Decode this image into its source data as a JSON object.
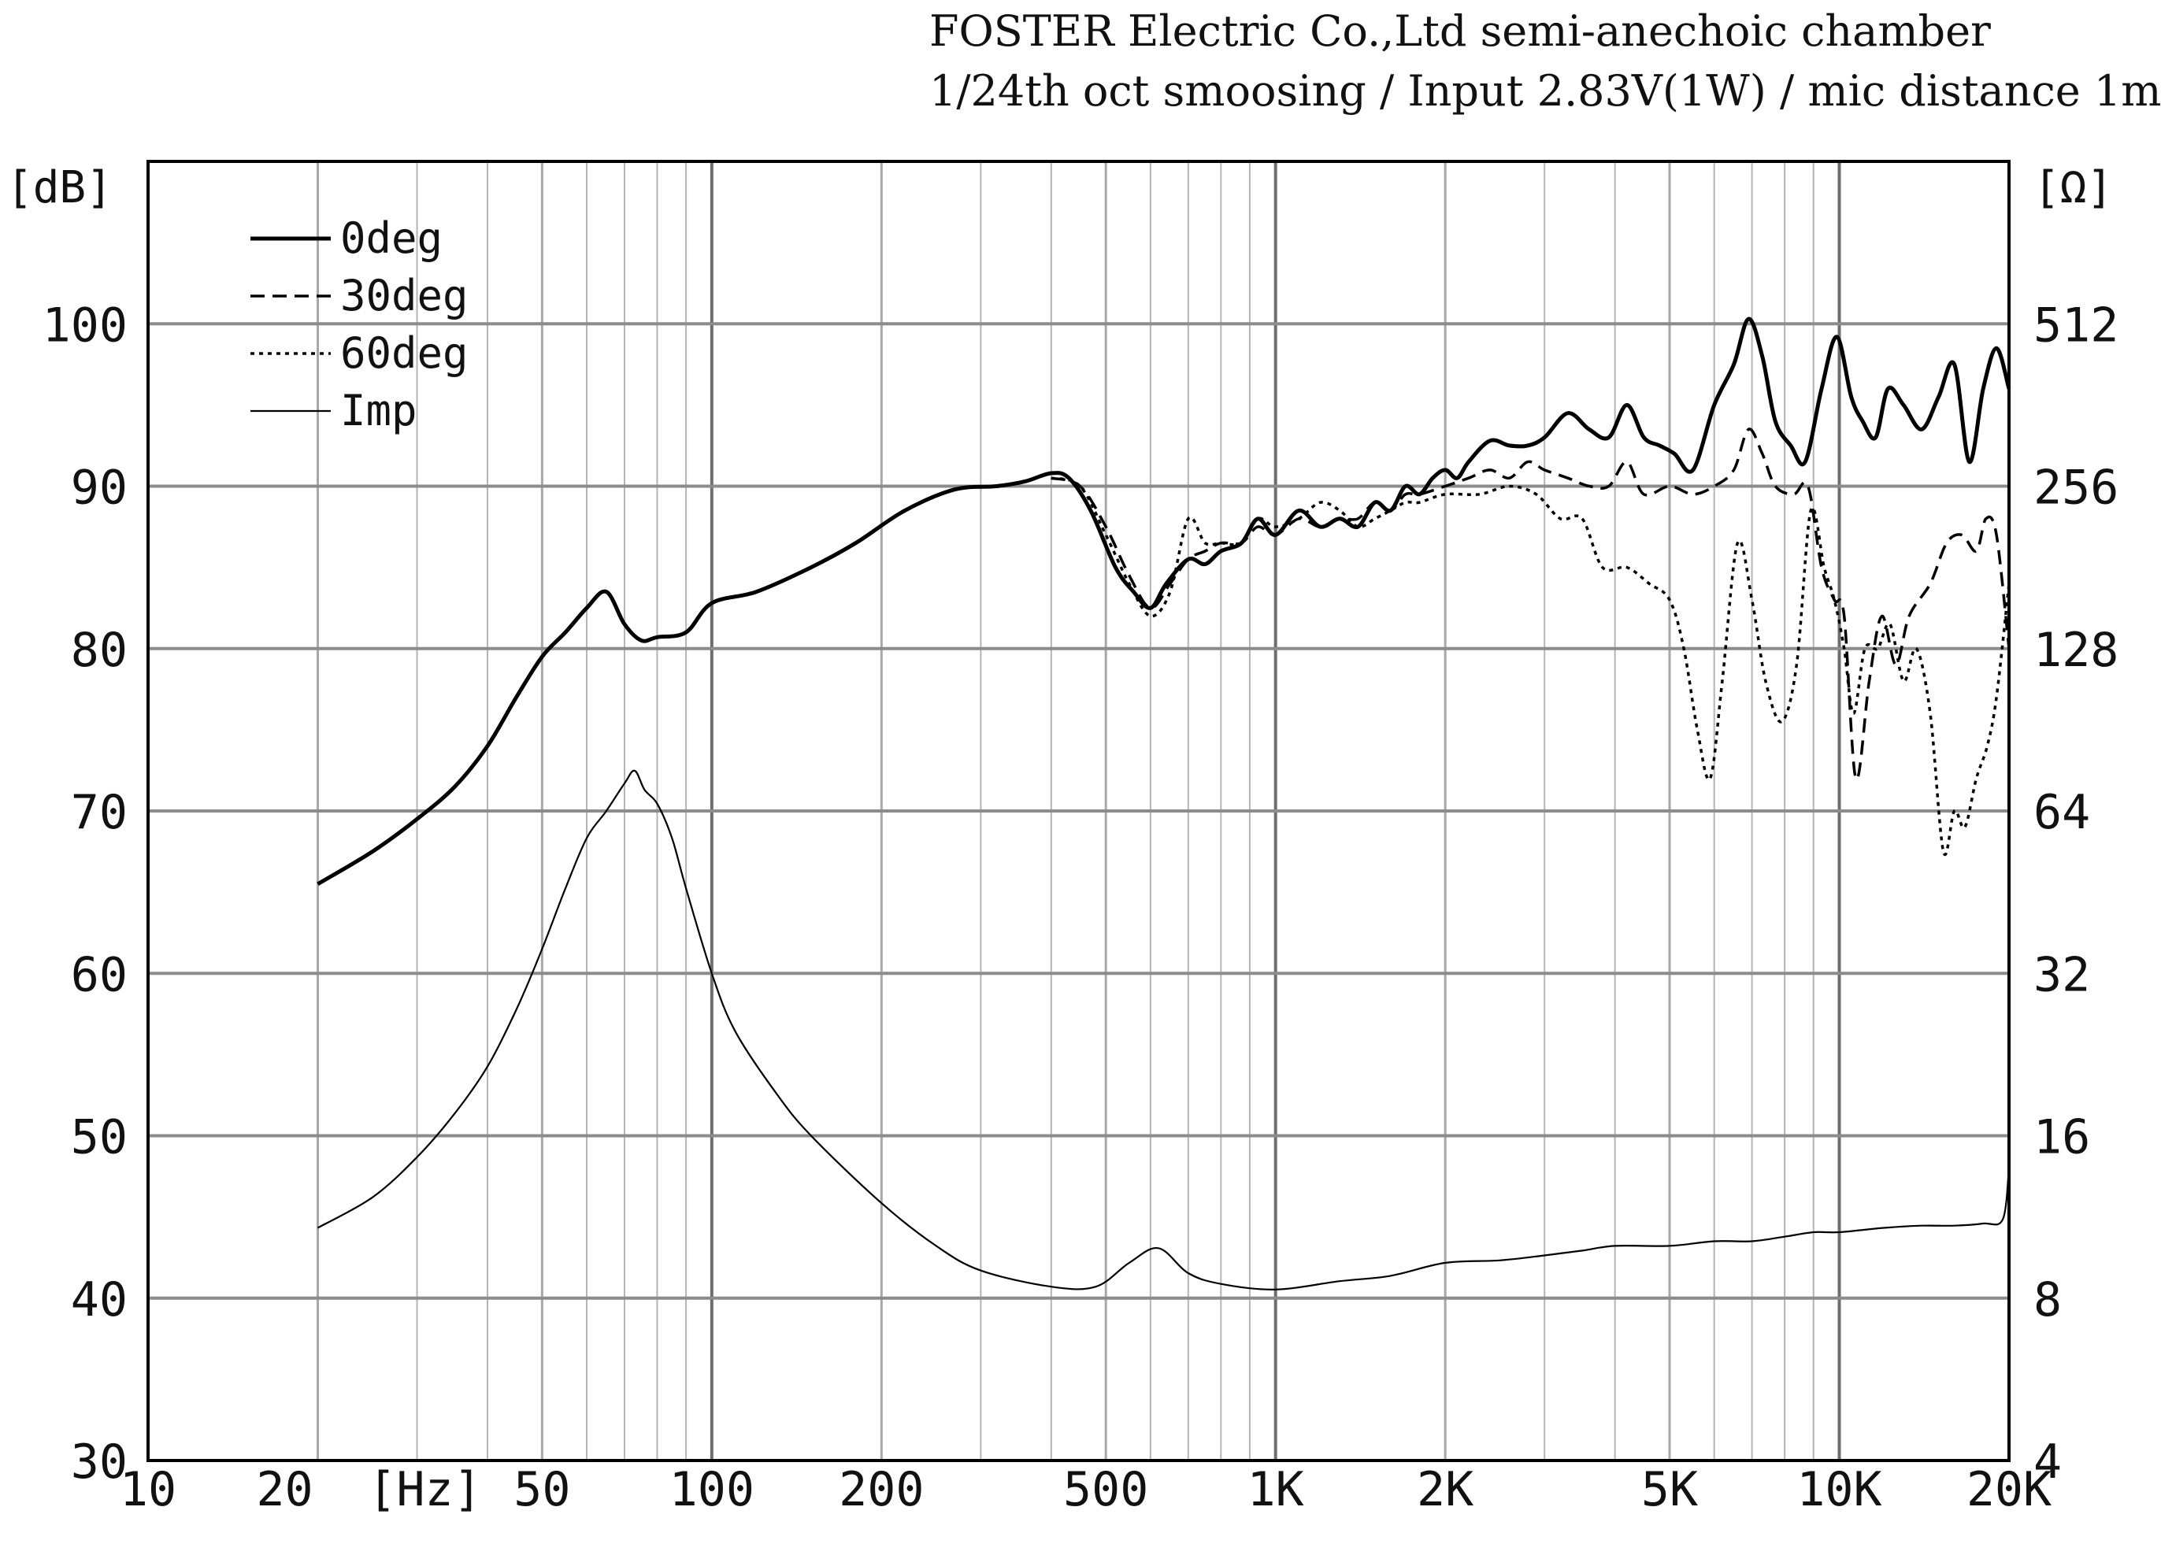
{
  "header": {
    "line1": "FOSTER Electric Co.,Ltd  semi-anechoic chamber",
    "line2": "1/24th oct smoosing / Input 2.83V(1W) / mic distance 1m"
  },
  "chart_data": {
    "type": "line",
    "x_scale": "log",
    "x_ticks": [
      {
        "v": 10,
        "label": "10"
      },
      {
        "v": 20,
        "label": "20"
      },
      {
        "v": 30,
        "label": "[Hz]"
      },
      {
        "v": 50,
        "label": "50"
      },
      {
        "v": 100,
        "label": "100"
      },
      {
        "v": 200,
        "label": "200"
      },
      {
        "v": 500,
        "label": "500"
      },
      {
        "v": 1000,
        "label": "1K"
      },
      {
        "v": 2000,
        "label": "2K"
      },
      {
        "v": 5000,
        "label": "5K"
      },
      {
        "v": 10000,
        "label": "10K"
      },
      {
        "v": 20000,
        "label": "20K"
      }
    ],
    "xlim": [
      10,
      20000
    ],
    "ylim": [
      30,
      110
    ],
    "y_left_unit": "[dB]",
    "y_left_ticks": [
      30,
      40,
      50,
      60,
      70,
      80,
      90,
      100
    ],
    "y_right_unit": "[Ω]",
    "y_right_ticks": [
      {
        "db": 30,
        "label": "4"
      },
      {
        "db": 40,
        "label": "8"
      },
      {
        "db": 50,
        "label": "16"
      },
      {
        "db": 60,
        "label": "32"
      },
      {
        "db": 70,
        "label": "64"
      },
      {
        "db": 80,
        "label": "128"
      },
      {
        "db": 90,
        "label": "256"
      },
      {
        "db": 100,
        "label": "512"
      }
    ],
    "grid": true,
    "legend_position": "top-left",
    "series": [
      {
        "name": "0deg",
        "style": "solid-thick",
        "points": [
          [
            20,
            65.5
          ],
          [
            25,
            67.5
          ],
          [
            30,
            69.5
          ],
          [
            35,
            71.5
          ],
          [
            40,
            74
          ],
          [
            45,
            77
          ],
          [
            50,
            79.5
          ],
          [
            55,
            81
          ],
          [
            60,
            82.5
          ],
          [
            65,
            83.5
          ],
          [
            70,
            81.5
          ],
          [
            75,
            80.5
          ],
          [
            80,
            80.7
          ],
          [
            90,
            81
          ],
          [
            100,
            82.8
          ],
          [
            120,
            83.5
          ],
          [
            150,
            85
          ],
          [
            180,
            86.5
          ],
          [
            220,
            88.5
          ],
          [
            270,
            89.8
          ],
          [
            320,
            90
          ],
          [
            360,
            90.3
          ],
          [
            400,
            90.8
          ],
          [
            430,
            90.5
          ],
          [
            470,
            88.5
          ],
          [
            520,
            85
          ],
          [
            560,
            83.5
          ],
          [
            600,
            82.5
          ],
          [
            640,
            84
          ],
          [
            700,
            85.5
          ],
          [
            750,
            85.2
          ],
          [
            800,
            86
          ],
          [
            870,
            86.5
          ],
          [
            930,
            88
          ],
          [
            1000,
            87
          ],
          [
            1100,
            88.5
          ],
          [
            1200,
            87.5
          ],
          [
            1300,
            88
          ],
          [
            1400,
            87.5
          ],
          [
            1500,
            89
          ],
          [
            1600,
            88.5
          ],
          [
            1700,
            90
          ],
          [
            1800,
            89.5
          ],
          [
            1900,
            90.5
          ],
          [
            2000,
            91
          ],
          [
            2100,
            90.5
          ],
          [
            2200,
            91.5
          ],
          [
            2400,
            92.8
          ],
          [
            2600,
            92.5
          ],
          [
            2800,
            92.5
          ],
          [
            3000,
            93
          ],
          [
            3300,
            94.5
          ],
          [
            3600,
            93.5
          ],
          [
            3900,
            93
          ],
          [
            4200,
            95
          ],
          [
            4500,
            93
          ],
          [
            4800,
            92.5
          ],
          [
            5100,
            92
          ],
          [
            5500,
            91
          ],
          [
            6000,
            95
          ],
          [
            6500,
            97.5
          ],
          [
            6900,
            100.3
          ],
          [
            7300,
            98
          ],
          [
            7700,
            94
          ],
          [
            8200,
            92.5
          ],
          [
            8700,
            91.5
          ],
          [
            9300,
            96
          ],
          [
            9900,
            99.2
          ],
          [
            10500,
            95.5
          ],
          [
            11000,
            94
          ],
          [
            11600,
            93
          ],
          [
            12200,
            96
          ],
          [
            13000,
            95
          ],
          [
            14000,
            93.5
          ],
          [
            15000,
            95.5
          ],
          [
            16000,
            97.5
          ],
          [
            17000,
            91.5
          ],
          [
            18000,
            96
          ],
          [
            19000,
            98.5
          ],
          [
            20000,
            96
          ]
        ]
      },
      {
        "name": "30deg",
        "style": "dashed",
        "points": [
          [
            400,
            90.5
          ],
          [
            450,
            90
          ],
          [
            500,
            87.5
          ],
          [
            550,
            84.5
          ],
          [
            600,
            82.5
          ],
          [
            650,
            84
          ],
          [
            700,
            85.5
          ],
          [
            750,
            86
          ],
          [
            800,
            86.5
          ],
          [
            870,
            86.5
          ],
          [
            930,
            87.5
          ],
          [
            1000,
            87
          ],
          [
            1100,
            88
          ],
          [
            1200,
            87.5
          ],
          [
            1300,
            88
          ],
          [
            1400,
            88
          ],
          [
            1500,
            89
          ],
          [
            1600,
            88.5
          ],
          [
            1700,
            89.5
          ],
          [
            1800,
            89.5
          ],
          [
            2000,
            90
          ],
          [
            2200,
            90.5
          ],
          [
            2400,
            91
          ],
          [
            2600,
            90.5
          ],
          [
            2800,
            91.5
          ],
          [
            3000,
            91
          ],
          [
            3300,
            90.5
          ],
          [
            3600,
            90
          ],
          [
            3900,
            90
          ],
          [
            4200,
            91.5
          ],
          [
            4500,
            89.5
          ],
          [
            5000,
            90
          ],
          [
            5500,
            89.5
          ],
          [
            6000,
            90
          ],
          [
            6500,
            91
          ],
          [
            6900,
            93.5
          ],
          [
            7300,
            92
          ],
          [
            7700,
            90
          ],
          [
            8300,
            89.5
          ],
          [
            8800,
            90
          ],
          [
            9300,
            85
          ],
          [
            9800,
            83
          ],
          [
            10200,
            82
          ],
          [
            10700,
            72
          ],
          [
            11300,
            78
          ],
          [
            11900,
            82
          ],
          [
            12600,
            79
          ],
          [
            13300,
            82
          ],
          [
            14500,
            84
          ],
          [
            15500,
            86.5
          ],
          [
            16500,
            87
          ],
          [
            17500,
            86
          ],
          [
            18200,
            88
          ],
          [
            19000,
            87
          ],
          [
            20000,
            80
          ]
        ]
      },
      {
        "name": "60deg",
        "style": "dotted",
        "points": [
          [
            400,
            90.5
          ],
          [
            450,
            90
          ],
          [
            500,
            87
          ],
          [
            550,
            84
          ],
          [
            600,
            82
          ],
          [
            650,
            83.5
          ],
          [
            700,
            88
          ],
          [
            750,
            86.5
          ],
          [
            800,
            86.5
          ],
          [
            870,
            86.5
          ],
          [
            930,
            88
          ],
          [
            1000,
            87.5
          ],
          [
            1100,
            88
          ],
          [
            1200,
            89
          ],
          [
            1300,
            88.5
          ],
          [
            1400,
            87.5
          ],
          [
            1500,
            88
          ],
          [
            1600,
            88.5
          ],
          [
            1700,
            89
          ],
          [
            1800,
            89
          ],
          [
            2000,
            89.5
          ],
          [
            2300,
            89.5
          ],
          [
            2600,
            90
          ],
          [
            2900,
            89.5
          ],
          [
            3200,
            88
          ],
          [
            3500,
            88
          ],
          [
            3800,
            85
          ],
          [
            4200,
            85
          ],
          [
            4600,
            84
          ],
          [
            5000,
            83
          ],
          [
            5300,
            80
          ],
          [
            5600,
            75
          ],
          [
            5900,
            72
          ],
          [
            6200,
            78
          ],
          [
            6600,
            86.5
          ],
          [
            7000,
            83
          ],
          [
            7400,
            78
          ],
          [
            7900,
            75.5
          ],
          [
            8400,
            79
          ],
          [
            8900,
            88.5
          ],
          [
            9400,
            85
          ],
          [
            9800,
            83
          ],
          [
            10200,
            80
          ],
          [
            10600,
            76
          ],
          [
            11100,
            80
          ],
          [
            11700,
            80
          ],
          [
            12300,
            81.5
          ],
          [
            13000,
            78
          ],
          [
            13700,
            80
          ],
          [
            14500,
            76
          ],
          [
            15300,
            67.5
          ],
          [
            16000,
            70
          ],
          [
            16700,
            69
          ],
          [
            17500,
            72
          ],
          [
            18300,
            74
          ],
          [
            19000,
            77
          ],
          [
            20000,
            84
          ]
        ]
      },
      {
        "name": "Imp",
        "style": "thin",
        "unit": "ohm",
        "points": [
          [
            20,
            10.8
          ],
          [
            25,
            12.3
          ],
          [
            30,
            14.6
          ],
          [
            35,
            17.6
          ],
          [
            40,
            21.5
          ],
          [
            45,
            27.4
          ],
          [
            50,
            35.5
          ],
          [
            55,
            46
          ],
          [
            60,
            57
          ],
          [
            65,
            64
          ],
          [
            70,
            72
          ],
          [
            73,
            76
          ],
          [
            76,
            70
          ],
          [
            80,
            66
          ],
          [
            85,
            57
          ],
          [
            90,
            46
          ],
          [
            100,
            32
          ],
          [
            110,
            25
          ],
          [
            130,
            19.2
          ],
          [
            150,
            16
          ],
          [
            200,
            12
          ],
          [
            250,
            10
          ],
          [
            300,
            9
          ],
          [
            400,
            8.4
          ],
          [
            480,
            8.4
          ],
          [
            550,
            9.3
          ],
          [
            620,
            9.9
          ],
          [
            700,
            8.9
          ],
          [
            800,
            8.5
          ],
          [
            1000,
            8.3
          ],
          [
            1300,
            8.6
          ],
          [
            1600,
            8.8
          ],
          [
            2000,
            9.3
          ],
          [
            2500,
            9.4
          ],
          [
            3000,
            9.6
          ],
          [
            3500,
            9.8
          ],
          [
            4000,
            10
          ],
          [
            5000,
            10
          ],
          [
            6000,
            10.2
          ],
          [
            7000,
            10.2
          ],
          [
            8000,
            10.4
          ],
          [
            9000,
            10.6
          ],
          [
            10000,
            10.6
          ],
          [
            12000,
            10.8
          ],
          [
            14000,
            10.9
          ],
          [
            16000,
            10.9
          ],
          [
            18000,
            11
          ],
          [
            19500,
            11.2
          ],
          [
            20000,
            14
          ]
        ]
      }
    ]
  }
}
